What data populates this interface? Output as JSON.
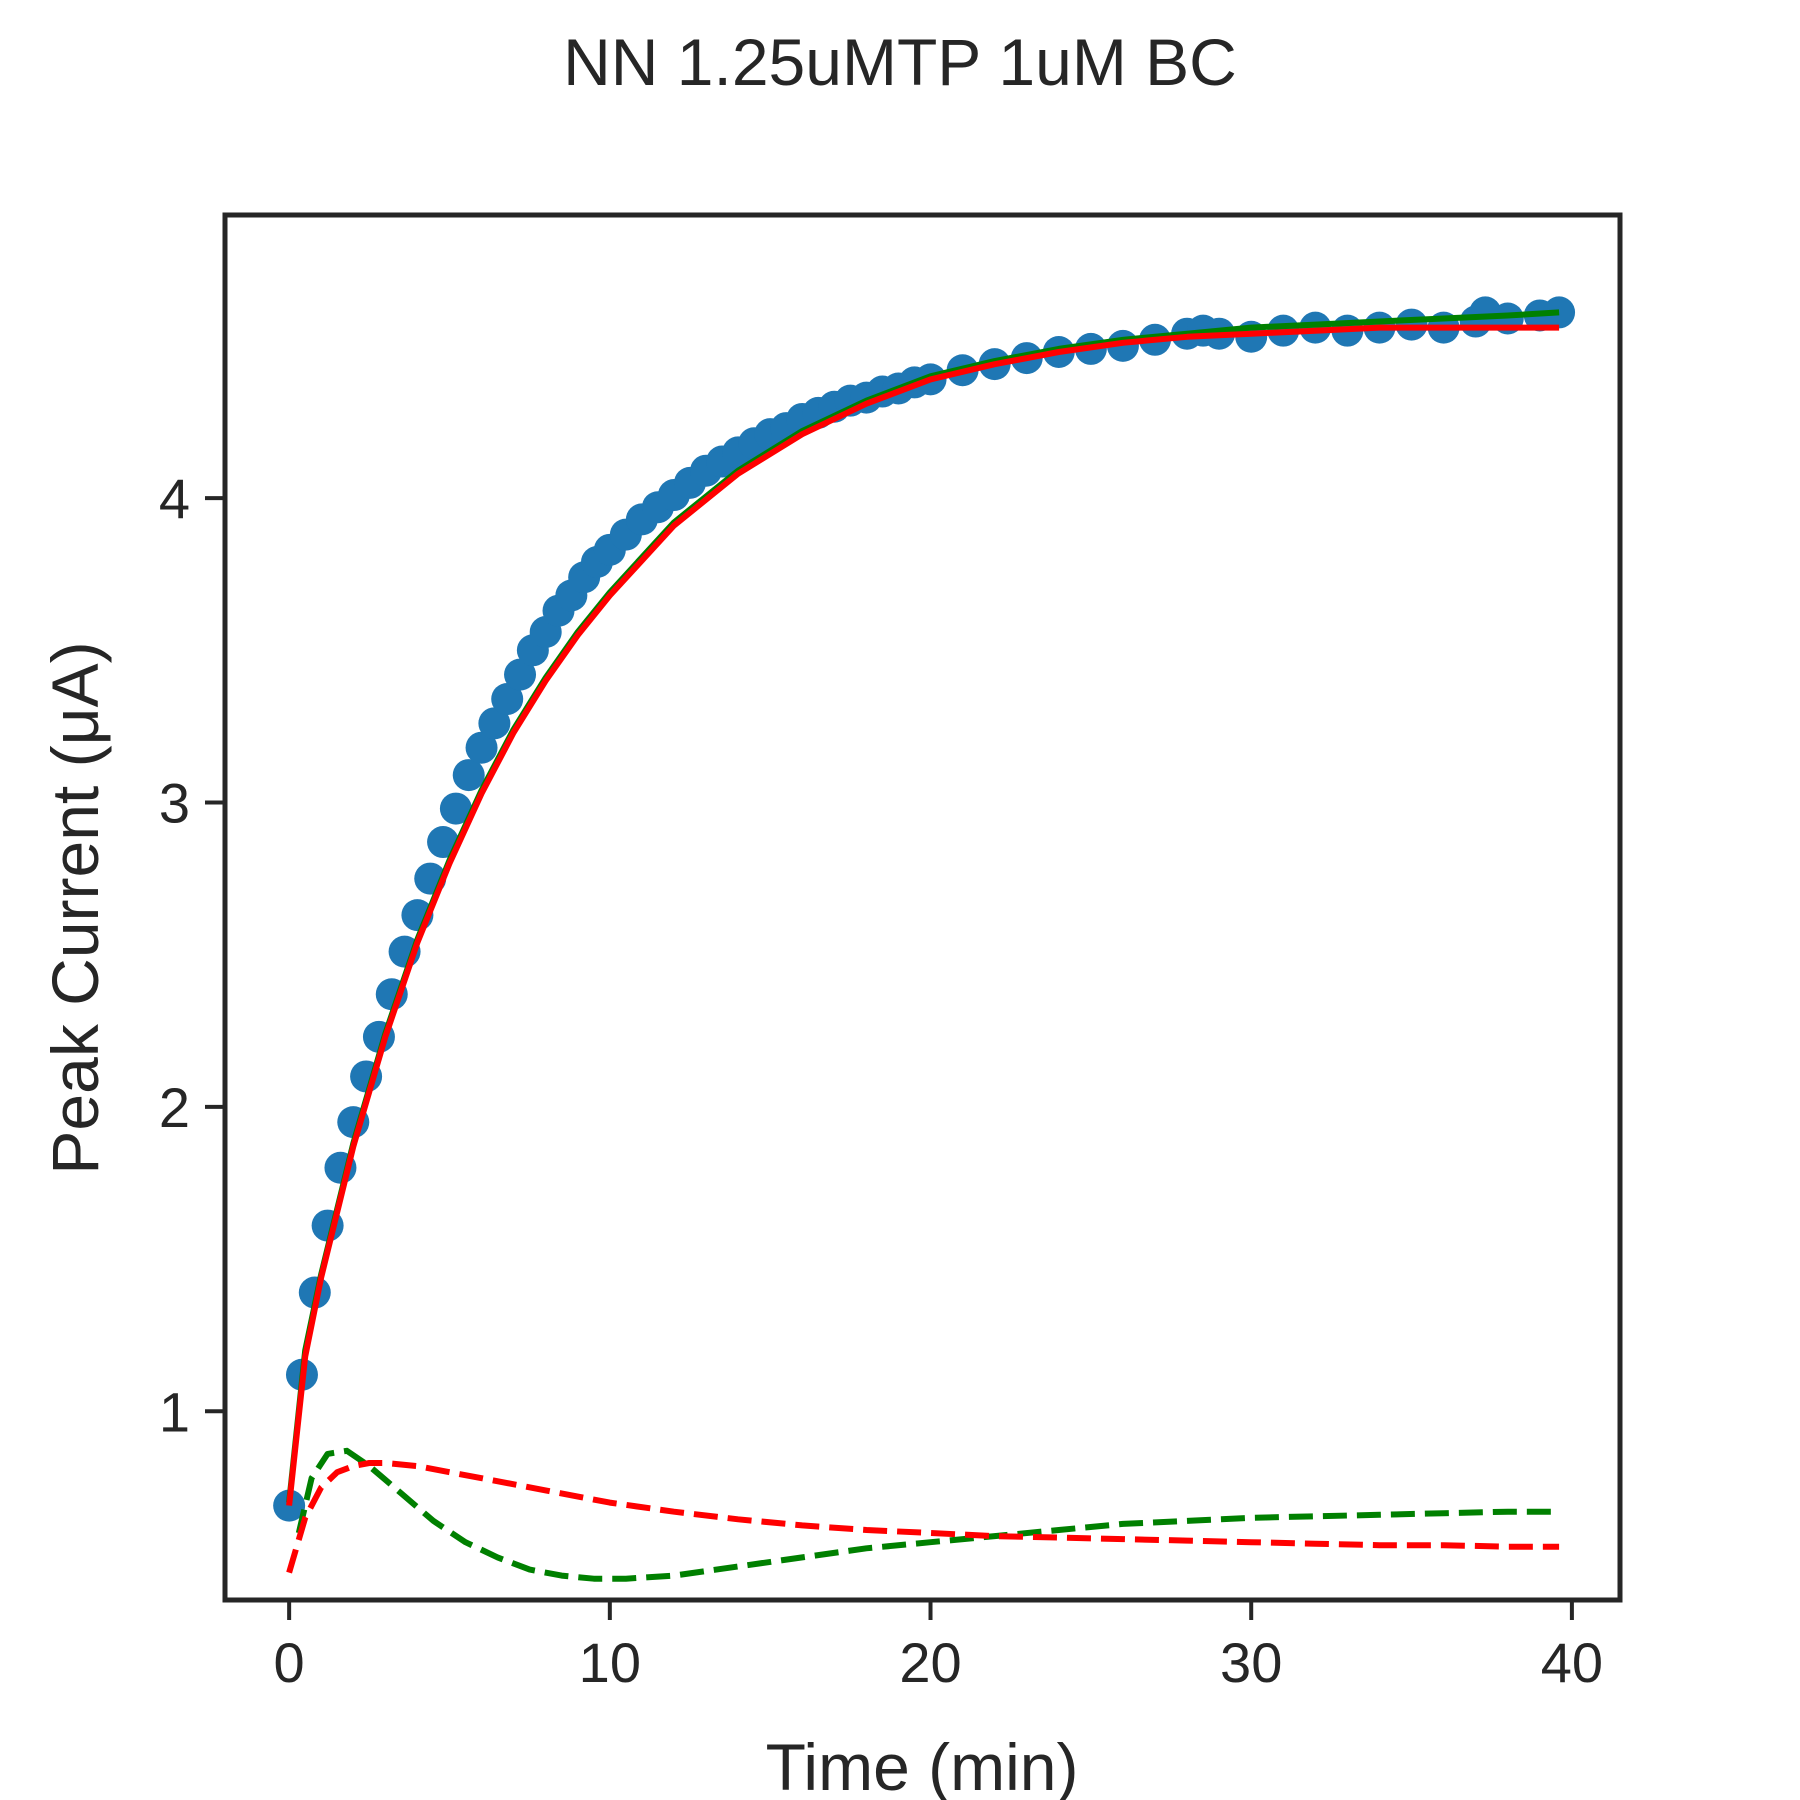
{
  "chart_data": {
    "type": "scatter",
    "title": "NN 1.25uMTP 1uM BC",
    "xlabel": "Time (min)",
    "ylabel": "Peak Current (μA)",
    "xlim": [
      -2,
      41.5
    ],
    "ylim": [
      0.38,
      4.93
    ],
    "xticks": [
      0,
      10,
      20,
      30,
      40
    ],
    "yticks": [
      1,
      2,
      3,
      4
    ],
    "grid": false,
    "legend": "none",
    "colors": {
      "points": "#1f77b4",
      "green": "#008000",
      "red": "#ff0000",
      "axes": "#262626"
    },
    "series": [
      {
        "kind": "scatter",
        "color": "#1f77b4",
        "x": [
          0,
          0.4,
          0.8,
          1.2,
          1.6,
          2.0,
          2.4,
          2.8,
          3.2,
          3.6,
          4.0,
          4.4,
          4.8,
          5.2,
          5.6,
          6.0,
          6.4,
          6.8,
          7.2,
          7.6,
          8.0,
          8.4,
          8.8,
          9.2,
          9.6,
          10.0,
          10.5,
          11.0,
          11.5,
          12.0,
          12.5,
          13.0,
          13.5,
          14.0,
          14.5,
          15.0,
          15.5,
          16.0,
          16.5,
          17.0,
          17.5,
          18.0,
          18.5,
          19.0,
          19.5,
          20.0,
          21.0,
          22.0,
          23.0,
          24.0,
          25.0,
          26.0,
          27.0,
          28.0,
          28.5,
          29.0,
          30.0,
          31.0,
          32.0,
          33.0,
          34.0,
          35.0,
          36.0,
          37.0,
          37.3,
          38.0,
          39.0,
          39.6
        ],
        "y": [
          0.69,
          1.12,
          1.39,
          1.61,
          1.8,
          1.95,
          2.1,
          2.23,
          2.37,
          2.51,
          2.63,
          2.75,
          2.87,
          2.98,
          3.09,
          3.18,
          3.26,
          3.34,
          3.42,
          3.5,
          3.56,
          3.63,
          3.68,
          3.74,
          3.79,
          3.83,
          3.88,
          3.93,
          3.97,
          4.01,
          4.05,
          4.09,
          4.12,
          4.15,
          4.18,
          4.21,
          4.23,
          4.26,
          4.28,
          4.3,
          4.32,
          4.33,
          4.35,
          4.36,
          4.38,
          4.39,
          4.42,
          4.44,
          4.46,
          4.48,
          4.49,
          4.5,
          4.52,
          4.54,
          4.55,
          4.54,
          4.53,
          4.55,
          4.56,
          4.55,
          4.56,
          4.57,
          4.56,
          4.58,
          4.61,
          4.59,
          4.6,
          4.61
        ]
      },
      {
        "kind": "line",
        "style": "solid",
        "color": "#008000",
        "x": [
          0,
          0.5,
          1,
          2,
          3,
          4,
          5,
          6,
          7,
          8,
          9,
          10,
          12,
          14,
          16,
          18,
          20,
          22,
          24,
          26,
          28,
          30,
          32,
          34,
          36,
          38,
          39.6
        ],
        "y": [
          0.7,
          1.2,
          1.45,
          1.88,
          2.24,
          2.55,
          2.81,
          3.04,
          3.24,
          3.41,
          3.56,
          3.69,
          3.92,
          4.09,
          4.22,
          4.32,
          4.4,
          4.45,
          4.49,
          4.52,
          4.54,
          4.56,
          4.57,
          4.58,
          4.59,
          4.6,
          4.61
        ]
      },
      {
        "kind": "line",
        "style": "solid",
        "color": "#ff0000",
        "x": [
          0,
          0.5,
          1,
          2,
          3,
          4,
          5,
          6,
          7,
          8,
          9,
          10,
          12,
          14,
          16,
          18,
          20,
          22,
          24,
          26,
          28,
          30,
          32,
          34,
          36,
          38,
          39.6
        ],
        "y": [
          0.69,
          1.18,
          1.44,
          1.87,
          2.23,
          2.54,
          2.8,
          3.03,
          3.23,
          3.4,
          3.55,
          3.68,
          3.91,
          4.08,
          4.21,
          4.31,
          4.39,
          4.44,
          4.48,
          4.51,
          4.53,
          4.54,
          4.55,
          4.56,
          4.56,
          4.56,
          4.56
        ]
      },
      {
        "kind": "line",
        "style": "dashed",
        "color": "#008000",
        "x": [
          0.3,
          0.7,
          1.2,
          1.8,
          2.5,
          3.5,
          4.5,
          5.5,
          6.5,
          7.5,
          8.5,
          9.5,
          10.5,
          12,
          14,
          16,
          18,
          20,
          22,
          24,
          26,
          28,
          30,
          32,
          34,
          36,
          38,
          39.6
        ],
        "y": [
          0.6,
          0.78,
          0.86,
          0.87,
          0.82,
          0.73,
          0.64,
          0.57,
          0.52,
          0.48,
          0.46,
          0.45,
          0.45,
          0.46,
          0.49,
          0.52,
          0.55,
          0.57,
          0.59,
          0.61,
          0.63,
          0.64,
          0.65,
          0.655,
          0.66,
          0.665,
          0.67,
          0.67
        ]
      },
      {
        "kind": "line",
        "style": "dashed",
        "color": "#ff0000",
        "x": [
          0,
          0.5,
          1,
          1.5,
          2,
          2.5,
          3,
          4,
          5,
          6,
          8,
          10,
          12,
          14,
          16,
          18,
          20,
          22,
          24,
          26,
          28,
          30,
          32,
          34,
          36,
          38,
          39.6
        ],
        "y": [
          0.47,
          0.65,
          0.75,
          0.8,
          0.82,
          0.83,
          0.83,
          0.82,
          0.8,
          0.78,
          0.74,
          0.7,
          0.67,
          0.645,
          0.625,
          0.61,
          0.6,
          0.59,
          0.585,
          0.58,
          0.575,
          0.57,
          0.565,
          0.56,
          0.56,
          0.555,
          0.555
        ]
      }
    ]
  }
}
